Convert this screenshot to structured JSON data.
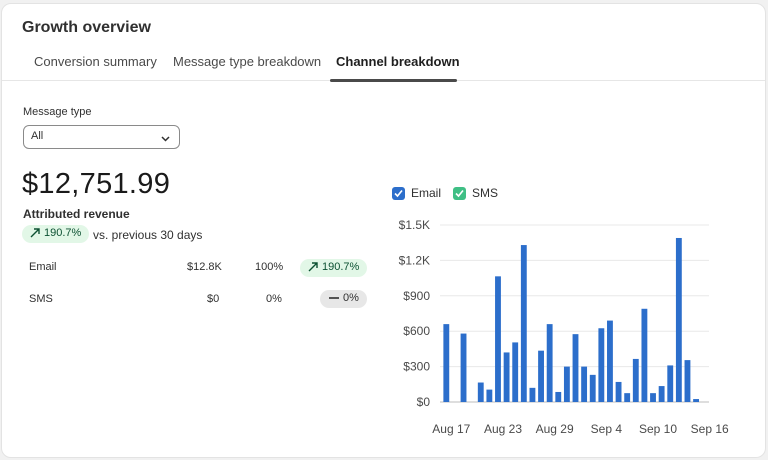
{
  "card": {
    "title": "Growth overview"
  },
  "tabs": [
    {
      "label": "Conversion summary"
    },
    {
      "label": "Message type breakdown"
    },
    {
      "label": "Channel breakdown"
    }
  ],
  "filter": {
    "label": "Message type",
    "value": "All"
  },
  "summary": {
    "value": "$12,751.99",
    "label": "Attributed revenue",
    "change": "190.7%",
    "change_suffix": "vs. previous 30 days"
  },
  "channels": [
    {
      "name": "Email",
      "revenue": "$12.8K",
      "share": "100%",
      "change": "190.7%"
    },
    {
      "name": "SMS",
      "revenue": "$0",
      "share": "0%",
      "change": "0%"
    }
  ],
  "legend": [
    {
      "name": "Email",
      "color": "#2c6ecb"
    },
    {
      "name": "SMS",
      "color": "#3fbf85"
    }
  ],
  "chart_data": {
    "type": "bar",
    "ylim": [
      0,
      1500
    ],
    "yticks": [
      "$0",
      "$300",
      "$600",
      "$900",
      "$1.2K",
      "$1.5K"
    ],
    "xticks": [
      "Aug 17",
      "Aug 23",
      "Aug 29",
      "Sep 4",
      "Sep 10",
      "Sep 16"
    ],
    "categories": [
      "Aug 17",
      "Aug 18",
      "Aug 19",
      "Aug 20",
      "Aug 21",
      "Aug 22",
      "Aug 23",
      "Aug 24",
      "Aug 25",
      "Aug 26",
      "Aug 27",
      "Aug 28",
      "Aug 29",
      "Aug 30",
      "Aug 31",
      "Sep 1",
      "Sep 2",
      "Sep 3",
      "Sep 4",
      "Sep 5",
      "Sep 6",
      "Sep 7",
      "Sep 8",
      "Sep 9",
      "Sep 10",
      "Sep 11",
      "Sep 12",
      "Sep 13",
      "Sep 14",
      "Sep 15",
      "Sep 16"
    ],
    "series": [
      {
        "name": "Email",
        "color": "#2c6ecb",
        "values": [
          660,
          0,
          580,
          0,
          165,
          105,
          1065,
          420,
          505,
          1330,
          120,
          435,
          660,
          85,
          300,
          575,
          300,
          230,
          625,
          690,
          170,
          75,
          365,
          790,
          75,
          135,
          310,
          1390,
          355,
          25,
          0
        ]
      },
      {
        "name": "SMS",
        "color": "#3fbf85",
        "values": [
          0,
          0,
          0,
          0,
          0,
          0,
          0,
          0,
          0,
          0,
          0,
          0,
          0,
          0,
          0,
          0,
          0,
          0,
          0,
          0,
          0,
          0,
          0,
          0,
          0,
          0,
          0,
          0,
          0,
          0,
          0
        ]
      }
    ]
  }
}
